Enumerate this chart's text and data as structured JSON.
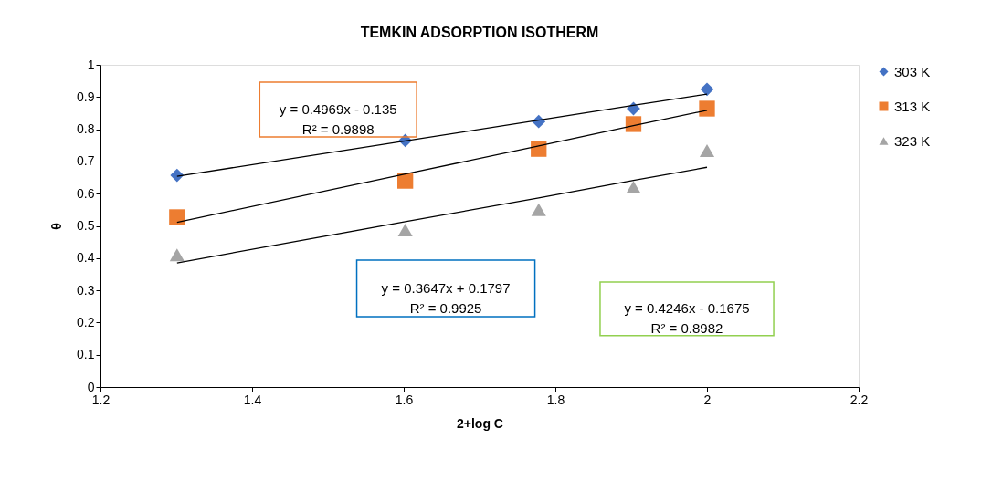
{
  "chart_data": {
    "type": "scatter",
    "title": "TEMKIN ADSORPTION ISOTHERM",
    "xlabel": "2+log C",
    "ylabel": "θ",
    "xlim": [
      1.2,
      2.2
    ],
    "xticks": [
      1.2,
      1.4,
      1.6,
      1.8,
      2,
      2.2
    ],
    "ylim": [
      0,
      1
    ],
    "yticks": [
      0,
      0.1,
      0.2,
      0.3,
      0.4,
      0.5,
      0.6,
      0.7,
      0.8,
      0.9,
      1
    ],
    "x": [
      1.301,
      1.602,
      1.778,
      1.903,
      2.0
    ],
    "series": [
      {
        "name": "303 K",
        "color": "#4472c4",
        "marker": "diamond",
        "values": [
          0.657,
          0.765,
          0.824,
          0.864,
          0.924
        ]
      },
      {
        "name": "313 K",
        "color": "#ed7d31",
        "marker": "square",
        "values": [
          0.527,
          0.64,
          0.739,
          0.816,
          0.864
        ]
      },
      {
        "name": "323 K",
        "color": "#a5a5a5",
        "marker": "triangle",
        "values": [
          0.41,
          0.487,
          0.55,
          0.62,
          0.734
        ]
      },
      {
        "type": "line",
        "color": "#000000",
        "marker": "none",
        "values": [
          0.654,
          0.764,
          0.828,
          0.874,
          0.909
        ]
      },
      {
        "type": "line",
        "color": "#000000",
        "marker": "none",
        "values": [
          0.511,
          0.661,
          0.748,
          0.811,
          0.859
        ]
      },
      {
        "type": "line",
        "color": "#000000",
        "marker": "none",
        "values": [
          0.385,
          0.513,
          0.587,
          0.641,
          0.682
        ]
      }
    ],
    "annotations": [
      "y = 0.4969x - 0.135\nR² = 0.9898",
      "y = 0.3647x + 0.1797\nR² = 0.9925",
      "y = 0.4246x - 0.1675\nR² = 0.8982"
    ],
    "legend": "right",
    "grid": false
  }
}
